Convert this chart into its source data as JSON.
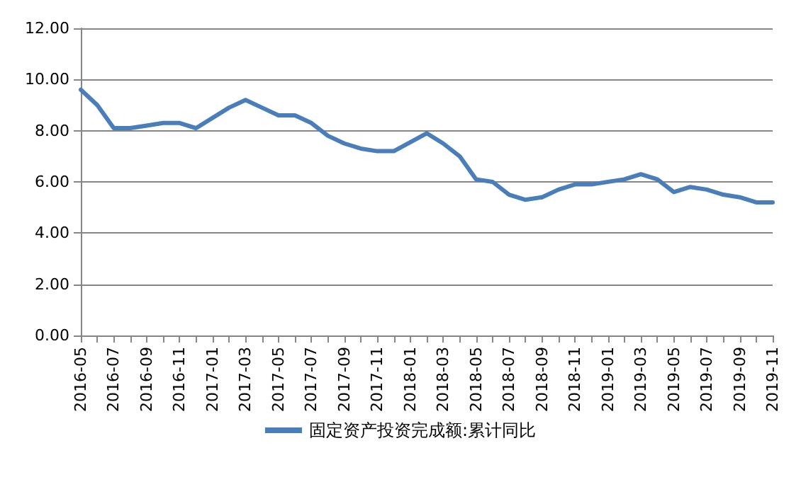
{
  "chart_data": {
    "type": "line",
    "categories": [
      "2016-05",
      null,
      "2016-07",
      null,
      "2016-09",
      null,
      "2016-11",
      null,
      "2017-01",
      null,
      "2017-03",
      null,
      "2017-05",
      null,
      "2017-07",
      null,
      "2017-09",
      null,
      "2017-11",
      null,
      "2018-01",
      null,
      "2018-03",
      null,
      "2018-05",
      null,
      "2018-07",
      null,
      "2018-09",
      null,
      "2018-11",
      null,
      "2019-01",
      null,
      "2019-03",
      null,
      "2019-05",
      null,
      "2019-07",
      null,
      "2019-09",
      null,
      "2019-11"
    ],
    "series": [
      {
        "name": "固定资产投资完成额:累计同比",
        "color": "#4a7ebb",
        "values": [
          9.6,
          9.0,
          8.1,
          8.1,
          8.2,
          8.3,
          8.3,
          8.1,
          null,
          8.9,
          9.2,
          8.9,
          8.6,
          8.6,
          8.3,
          7.8,
          7.5,
          7.3,
          7.2,
          7.2,
          null,
          7.9,
          7.5,
          7.0,
          6.1,
          6.0,
          5.5,
          5.3,
          5.4,
          5.7,
          5.9,
          5.9,
          null,
          6.1,
          6.3,
          6.1,
          5.6,
          5.8,
          5.7,
          5.5,
          5.4,
          5.2,
          5.2
        ]
      }
    ],
    "ylim": [
      0,
      12
    ],
    "yticks": [
      {
        "value": 0,
        "label": "0.00"
      },
      {
        "value": 2,
        "label": "2.00"
      },
      {
        "value": 4,
        "label": "4.00"
      },
      {
        "value": 6,
        "label": "6.00"
      },
      {
        "value": 8,
        "label": "8.00"
      },
      {
        "value": 10,
        "label": "10.00"
      },
      {
        "value": 12,
        "label": "12.00"
      }
    ],
    "grid": "y",
    "legend": "bottom",
    "marker": "none",
    "line_style": "solid"
  }
}
